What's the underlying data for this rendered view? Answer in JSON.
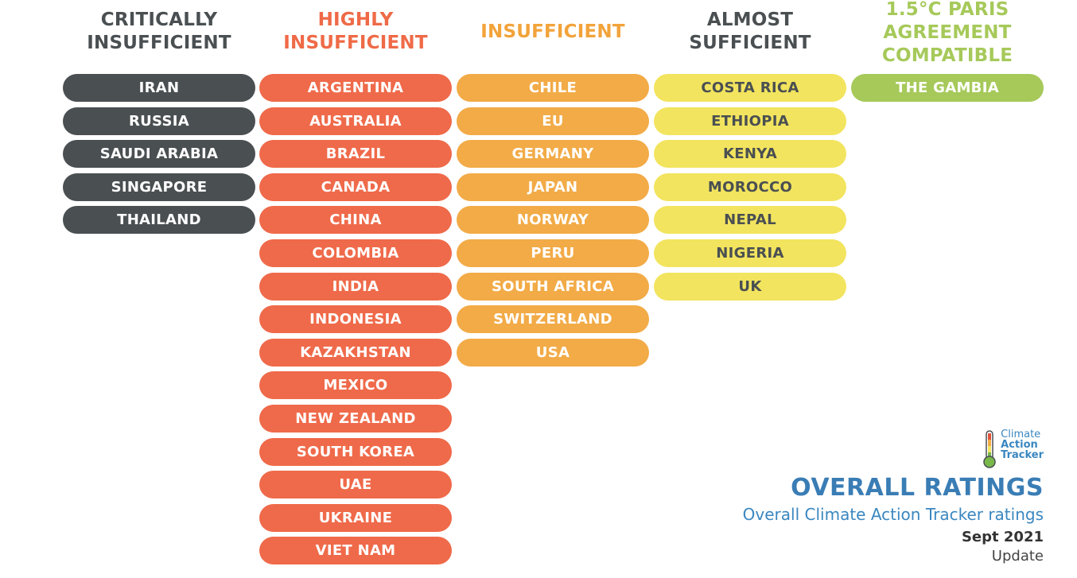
{
  "columns": [
    {
      "heading": [
        "CRITICALLY",
        "INSUFFICIENT"
      ],
      "heading_color": "#4a4f52",
      "pill_color": "#4a4f52",
      "pill_text_color": "#ffffff",
      "countries": [
        "IRAN",
        "RUSSIA",
        "SAUDI ARABIA",
        "SINGAPORE",
        "THAILAND"
      ]
    },
    {
      "heading": [
        "HIGHLY",
        "INSUFFICIENT"
      ],
      "heading_color": "#ef6a47",
      "pill_color": "#ef6a4a",
      "pill_text_color": "#ffffff",
      "countries": [
        "ARGENTINA",
        "AUSTRALIA",
        "BRAZIL",
        "CANADA",
        "CHINA",
        "COLOMBIA",
        "INDIA",
        "INDONESIA",
        "KAZAKHSTAN",
        "MEXICO",
        "NEW ZEALAND",
        "SOUTH KOREA",
        "UAE",
        "UKRAINE",
        "VIET NAM"
      ]
    },
    {
      "heading": [
        "INSUFFICIENT"
      ],
      "heading_color": "#f2a33a",
      "pill_color": "#f2ab47",
      "pill_text_color": "#ffffff",
      "countries": [
        "CHILE",
        "EU",
        "GERMANY",
        "JAPAN",
        "NORWAY",
        "PERU",
        "SOUTH AFRICA",
        "SWITZERLAND",
        "USA"
      ]
    },
    {
      "heading": [
        "ALMOST",
        "SUFFICIENT"
      ],
      "heading_color": "#4a4f52",
      "pill_color": "#f2e45e",
      "pill_text_color": "#4a4f52",
      "countries": [
        "COSTA RICA",
        "ETHIOPIA",
        "KENYA",
        "MOROCCO",
        "NEPAL",
        "NIGERIA",
        "UK"
      ]
    },
    {
      "heading": [
        "1.5°C PARIS",
        "AGREEMENT",
        "COMPATIBLE"
      ],
      "heading_color": "#a6c95a",
      "pill_color": "#a6c95a",
      "pill_text_color": "#ffffff",
      "countries": [
        "THE GAMBIA"
      ]
    }
  ],
  "logo": {
    "icon": "thermometer-icon",
    "line1": "Climate",
    "line2": "Action",
    "line3": "Tracker"
  },
  "title": "OVERALL RATINGS",
  "subtitle": "Overall Climate Action Tracker ratings",
  "date": "Sept 2021",
  "update_label": "Update"
}
